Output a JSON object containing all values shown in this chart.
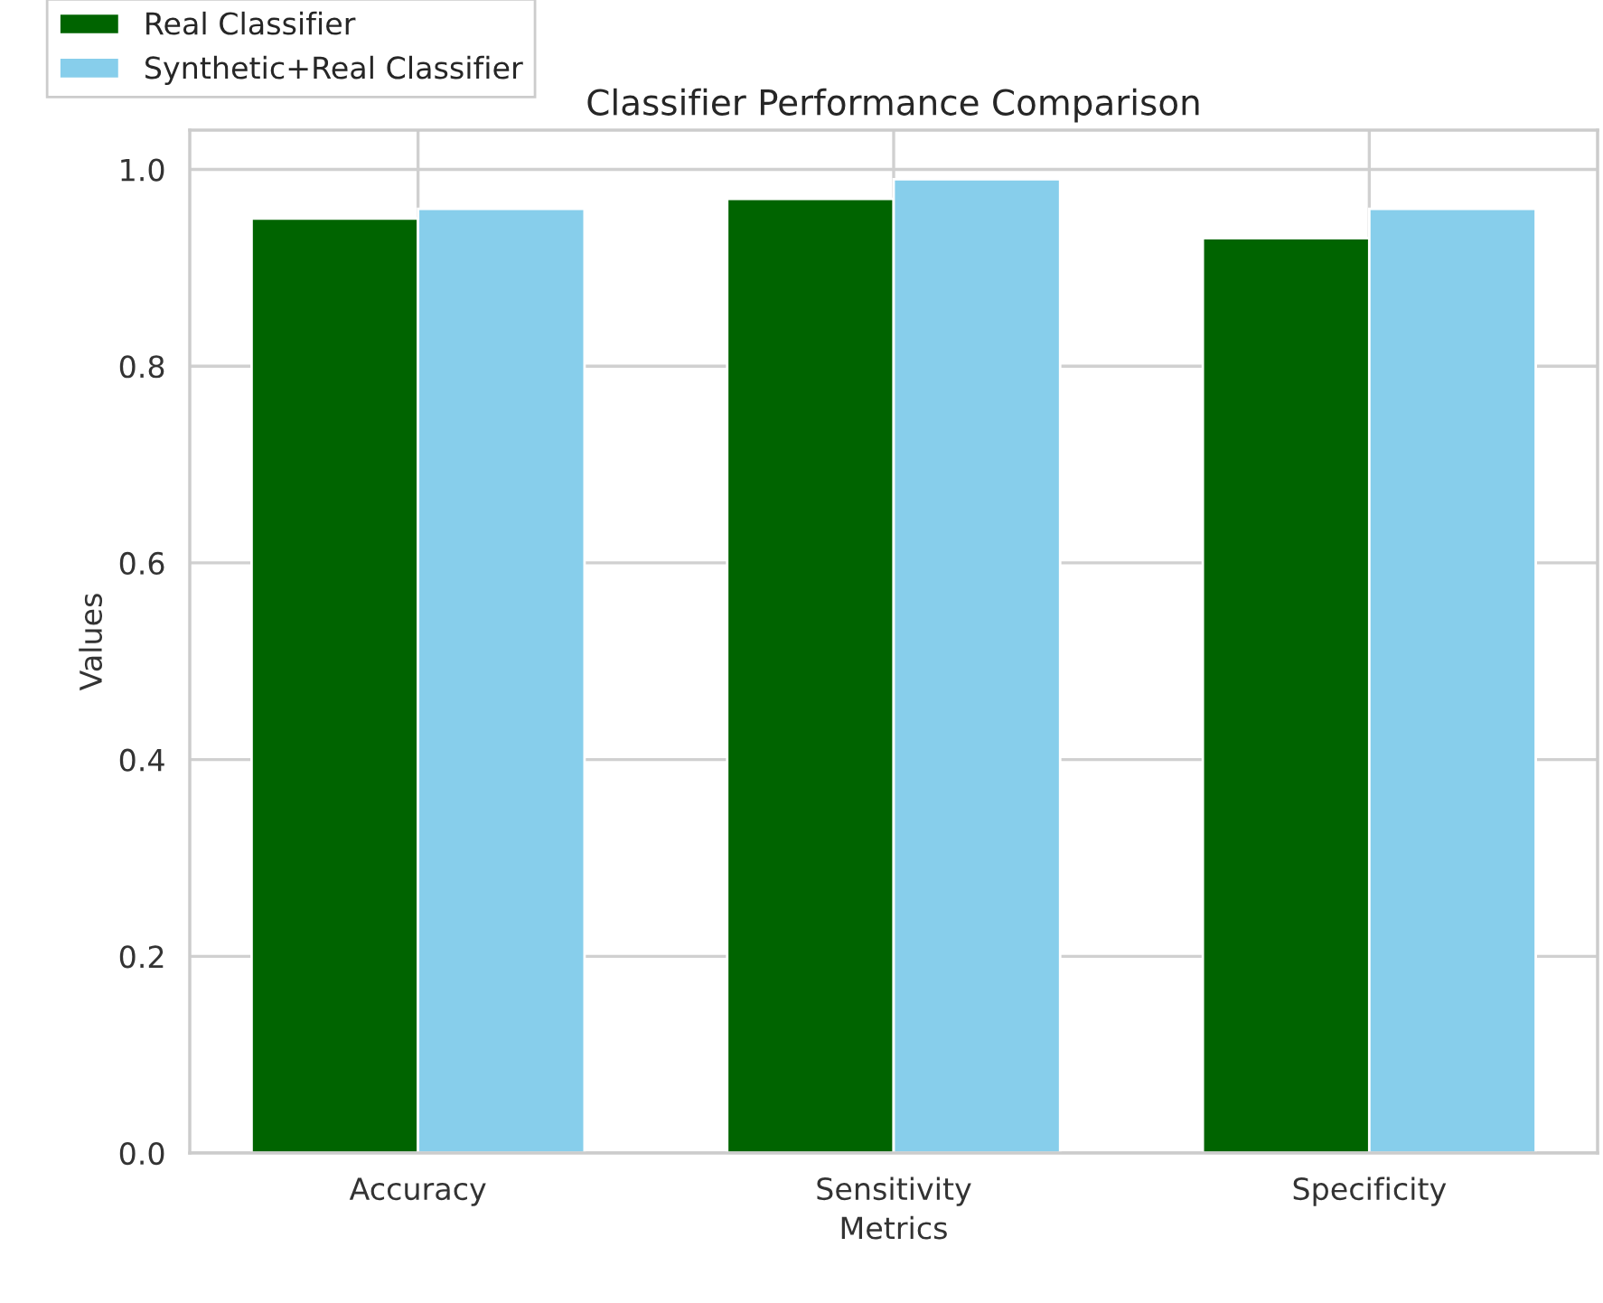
{
  "chart_data": {
    "type": "bar",
    "title": "Classifier Performance Comparison",
    "xlabel": "Metrics",
    "ylabel": "Values",
    "categories": [
      "Accuracy",
      "Sensitivity",
      "Specificity"
    ],
    "series": [
      {
        "name": "Real Classifier",
        "color": "#006400",
        "values": [
          0.95,
          0.97,
          0.93
        ]
      },
      {
        "name": "Synthetic+Real Classifier",
        "color": "#87ceeb",
        "values": [
          0.96,
          0.99,
          0.96
        ]
      }
    ],
    "ylim": [
      0,
      1.04
    ],
    "yticks": [
      {
        "value": 0,
        "label": "0.0"
      },
      0.2,
      0.4,
      0.6,
      0.8,
      {
        "value": 1,
        "label": "1.0"
      }
    ],
    "grid": true,
    "legend": "top left"
  }
}
